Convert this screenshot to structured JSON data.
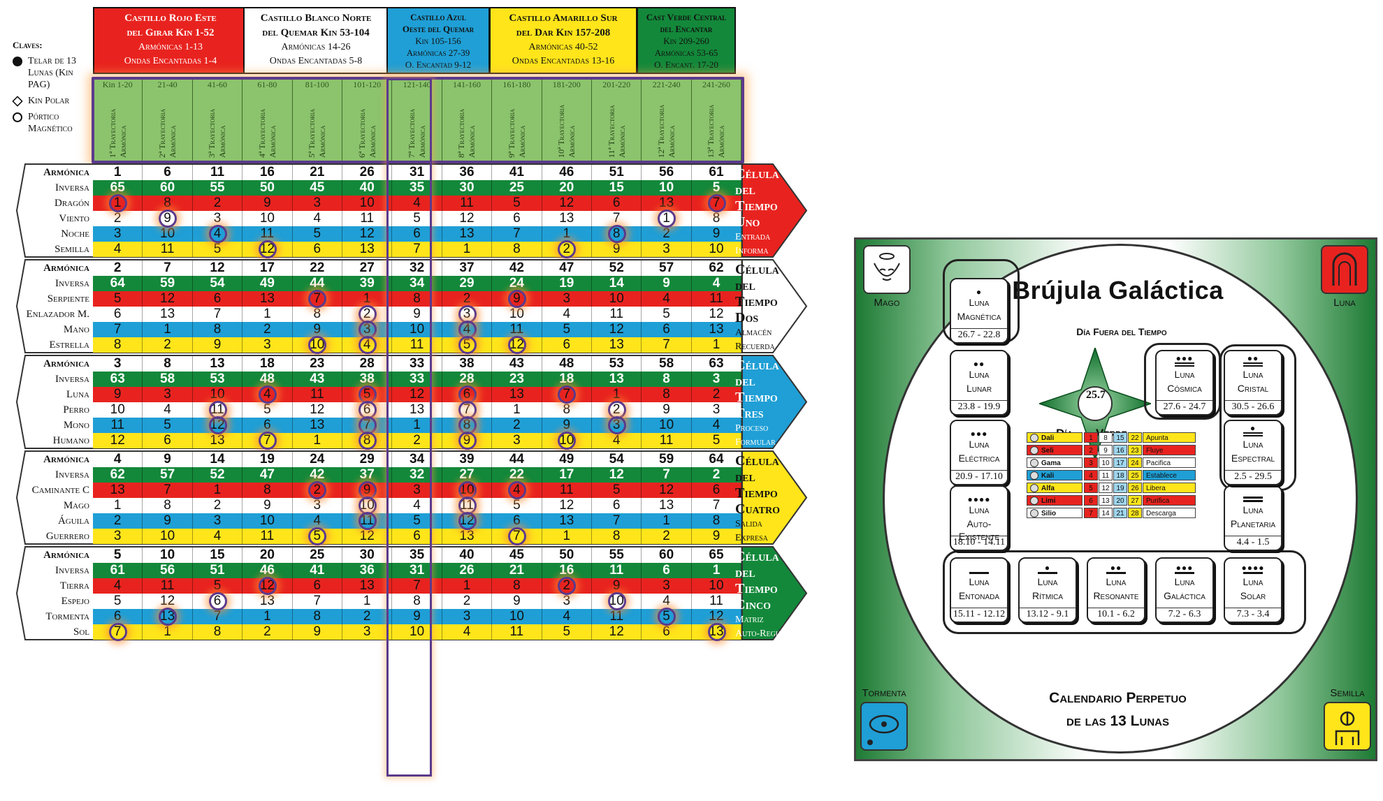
{
  "legend": {
    "title": "Claves:",
    "items": [
      {
        "symbol": "dot",
        "label": "Telar de 13 Lunas (Kin PAG)"
      },
      {
        "symbol": "diamond",
        "label": "Kin Polar"
      },
      {
        "symbol": "ring",
        "label": "Pórtico Magnético"
      }
    ]
  },
  "castles": [
    {
      "color": "#e8231f",
      "text": "#ffffff",
      "line1": "Castillo Rojo Este",
      "line2": "del Girar Kin 1-52",
      "line3": "Armónicas 1-13",
      "line4": "Ondas Encantadas 1-4"
    },
    {
      "color": "#ffffff",
      "text": "#111111",
      "line1": "Castillo Blanco Norte",
      "line2": "del Quemar Kin 53-104",
      "line3": "Armónicas 14-26",
      "line4": "Ondas Encantadas 5-8"
    },
    {
      "color": "#1f9fd6",
      "text": "#111111",
      "line1": "Castillo Azul",
      "line2": "Oeste del Quemar",
      "line3": "Kin 105-156",
      "line4": "Armónicas 27-39",
      "line5": "O. Encantad 9-12"
    },
    {
      "color": "#ffe51a",
      "text": "#111111",
      "line1": "Castillo Amarillo Sur",
      "line2": "del Dar Kin 157-208",
      "line3": "Armónicas 40-52",
      "line4": "Ondas Encantadas 13-16"
    },
    {
      "color": "#13883a",
      "text": "#111111",
      "line1": "Cast Verde Central",
      "line2": "del Encantar",
      "line3": "Kin 209-260",
      "line4": "Armónicas 53-65",
      "line5": "O. Encant. 17-20"
    }
  ],
  "trajectories": [
    {
      "range": "Kin 1-20",
      "label": "1ª Trayectoria Armónica"
    },
    {
      "range": "21-40",
      "label": "2ª Trayectoria Armónica"
    },
    {
      "range": "41-60",
      "label": "3ª Trayectoria Armónica"
    },
    {
      "range": "61-80",
      "label": "4ª Trayectoria Armónica"
    },
    {
      "range": "81-100",
      "label": "5ª Trayectoria Armónica"
    },
    {
      "range": "101-120",
      "label": "6ª Trayectoria Armónica"
    },
    {
      "range": "121-140",
      "label": "7ª Trayectoria Armónica"
    },
    {
      "range": "141-160",
      "label": "8ª Trayectoria Armónica"
    },
    {
      "range": "161-180",
      "label": "9ª Trayectoria Armónica"
    },
    {
      "range": "181-200",
      "label": "10ª Trayectoria Armónica"
    },
    {
      "range": "201-220",
      "label": "11ª Trayectoria Armónica"
    },
    {
      "range": "221-240",
      "label": "12ª Trayectoria Armónica"
    },
    {
      "range": "241-260",
      "label": "13ª Trayectoria Armónica"
    }
  ],
  "rowColors": {
    "harmonic": "#ffffff",
    "inverse": "#13883a",
    "red": "#e8231f",
    "white": "#ffffff",
    "blue": "#1f9fd6",
    "yellow": "#ffe51a"
  },
  "cells": [
    {
      "title": [
        "Célula",
        "del",
        "Tiempo",
        "Uno"
      ],
      "sub": [
        "Entrada",
        "Informa"
      ],
      "color": "#e8231f",
      "rows": [
        {
          "name": "Armónica",
          "kind": "harmonic",
          "vals": [
            "1",
            "6",
            "11",
            "16",
            "21",
            "26",
            "31",
            "36",
            "41",
            "46",
            "51",
            "56",
            "61"
          ]
        },
        {
          "name": "Inversa",
          "kind": "inverse",
          "vals": [
            "65",
            "60",
            "55",
            "50",
            "45",
            "40",
            "35",
            "30",
            "25",
            "20",
            "15",
            "10",
            "5"
          ]
        },
        {
          "name": "Dragón",
          "kind": "red",
          "vals": [
            "1",
            "8",
            "2",
            "9",
            "3",
            "10",
            "4",
            "11",
            "5",
            "12",
            "6",
            "13",
            "7"
          ]
        },
        {
          "name": "Viento",
          "kind": "white",
          "vals": [
            "2",
            "9",
            "3",
            "10",
            "4",
            "11",
            "5",
            "12",
            "6",
            "13",
            "7",
            "1",
            "8"
          ]
        },
        {
          "name": "Noche",
          "kind": "blue",
          "vals": [
            "3",
            "10",
            "4",
            "11",
            "5",
            "12",
            "6",
            "13",
            "7",
            "1",
            "8",
            "2",
            "9"
          ]
        },
        {
          "name": "Semilla",
          "kind": "yellow",
          "vals": [
            "4",
            "11",
            "5",
            "12",
            "6",
            "13",
            "7",
            "1",
            "8",
            "2",
            "9",
            "3",
            "10"
          ]
        }
      ],
      "marks": [
        [
          2,
          0
        ],
        [
          2,
          12
        ],
        [
          3,
          1
        ],
        [
          3,
          11
        ],
        [
          4,
          2
        ],
        [
          4,
          10
        ],
        [
          5,
          3
        ],
        [
          5,
          9
        ]
      ]
    },
    {
      "title": [
        "Célula",
        "del",
        "Tiempo",
        "Dos"
      ],
      "sub": [
        "Almacén",
        "Recuerda"
      ],
      "color": "#ffffff",
      "rows": [
        {
          "name": "Armónica",
          "kind": "harmonic",
          "vals": [
            "2",
            "7",
            "12",
            "17",
            "22",
            "27",
            "32",
            "37",
            "42",
            "47",
            "52",
            "57",
            "62"
          ]
        },
        {
          "name": "Inversa",
          "kind": "inverse",
          "vals": [
            "64",
            "59",
            "54",
            "49",
            "44",
            "39",
            "34",
            "29",
            "24",
            "19",
            "14",
            "9",
            "4"
          ]
        },
        {
          "name": "Serpiente",
          "kind": "red",
          "vals": [
            "5",
            "12",
            "6",
            "13",
            "7",
            "1",
            "8",
            "2",
            "9",
            "3",
            "10",
            "4",
            "11"
          ]
        },
        {
          "name": "Enlazador M.",
          "kind": "white",
          "vals": [
            "6",
            "13",
            "7",
            "1",
            "8",
            "2",
            "9",
            "3",
            "10",
            "4",
            "11",
            "5",
            "12"
          ]
        },
        {
          "name": "Mano",
          "kind": "blue",
          "vals": [
            "7",
            "1",
            "8",
            "2",
            "9",
            "3",
            "10",
            "4",
            "11",
            "5",
            "12",
            "6",
            "13"
          ]
        },
        {
          "name": "Estrella",
          "kind": "yellow",
          "vals": [
            "8",
            "2",
            "9",
            "3",
            "10",
            "4",
            "11",
            "5",
            "12",
            "6",
            "13",
            "7",
            "1"
          ]
        }
      ],
      "marks": [
        [
          2,
          4
        ],
        [
          2,
          8
        ],
        [
          3,
          5
        ],
        [
          3,
          7
        ],
        [
          4,
          5
        ],
        [
          4,
          7
        ],
        [
          5,
          4
        ],
        [
          5,
          5
        ],
        [
          5,
          7
        ],
        [
          5,
          8
        ]
      ]
    },
    {
      "title": [
        "Célula",
        "del",
        "Tiempo",
        "Tres"
      ],
      "sub": [
        "Proceso",
        "Formular"
      ],
      "color": "#1f9fd6",
      "rows": [
        {
          "name": "Armónica",
          "kind": "harmonic",
          "vals": [
            "3",
            "8",
            "13",
            "18",
            "23",
            "28",
            "33",
            "38",
            "43",
            "48",
            "53",
            "58",
            "63"
          ]
        },
        {
          "name": "Inversa",
          "kind": "inverse",
          "vals": [
            "63",
            "58",
            "53",
            "48",
            "43",
            "38",
            "33",
            "28",
            "23",
            "18",
            "13",
            "8",
            "3"
          ]
        },
        {
          "name": "Luna",
          "kind": "red",
          "vals": [
            "9",
            "3",
            "10",
            "4",
            "11",
            "5",
            "12",
            "6",
            "13",
            "7",
            "1",
            "8",
            "2"
          ]
        },
        {
          "name": "Perro",
          "kind": "white",
          "vals": [
            "10",
            "4",
            "11",
            "5",
            "12",
            "6",
            "13",
            "7",
            "1",
            "8",
            "2",
            "9",
            "3"
          ]
        },
        {
          "name": "Mono",
          "kind": "blue",
          "vals": [
            "11",
            "5",
            "12",
            "6",
            "13",
            "7",
            "1",
            "8",
            "2",
            "9",
            "3",
            "10",
            "4"
          ]
        },
        {
          "name": "Humano",
          "kind": "yellow",
          "vals": [
            "12",
            "6",
            "13",
            "7",
            "1",
            "8",
            "2",
            "9",
            "3",
            "10",
            "4",
            "11",
            "5"
          ]
        }
      ],
      "marks": [
        [
          2,
          3
        ],
        [
          2,
          5
        ],
        [
          2,
          7
        ],
        [
          2,
          9
        ],
        [
          3,
          2
        ],
        [
          3,
          5
        ],
        [
          3,
          7
        ],
        [
          3,
          10
        ],
        [
          4,
          2
        ],
        [
          4,
          5
        ],
        [
          4,
          7
        ],
        [
          4,
          10
        ],
        [
          5,
          3
        ],
        [
          5,
          5
        ],
        [
          5,
          7
        ],
        [
          5,
          9
        ]
      ]
    },
    {
      "title": [
        "Célula",
        "del",
        "Tiempo",
        "Cuatro"
      ],
      "sub": [
        "Salida",
        "Expresa"
      ],
      "color": "#ffe51a",
      "rows": [
        {
          "name": "Armónica",
          "kind": "harmonic",
          "vals": [
            "4",
            "9",
            "14",
            "19",
            "24",
            "29",
            "34",
            "39",
            "44",
            "49",
            "54",
            "59",
            "64"
          ]
        },
        {
          "name": "Inversa",
          "kind": "inverse",
          "vals": [
            "62",
            "57",
            "52",
            "47",
            "42",
            "37",
            "32",
            "27",
            "22",
            "17",
            "12",
            "7",
            "2"
          ]
        },
        {
          "name": "Caminante C",
          "kind": "red",
          "vals": [
            "13",
            "7",
            "1",
            "8",
            "2",
            "9",
            "3",
            "10",
            "4",
            "11",
            "5",
            "12",
            "6"
          ]
        },
        {
          "name": "Mago",
          "kind": "white",
          "vals": [
            "1",
            "8",
            "2",
            "9",
            "3",
            "10",
            "4",
            "11",
            "5",
            "12",
            "6",
            "13",
            "7"
          ]
        },
        {
          "name": "Águila",
          "kind": "blue",
          "vals": [
            "2",
            "9",
            "3",
            "10",
            "4",
            "11",
            "5",
            "12",
            "6",
            "13",
            "7",
            "1",
            "8"
          ]
        },
        {
          "name": "Guerrero",
          "kind": "yellow",
          "vals": [
            "3",
            "10",
            "4",
            "11",
            "5",
            "12",
            "6",
            "13",
            "7",
            "1",
            "8",
            "2",
            "9"
          ]
        }
      ],
      "marks": [
        [
          2,
          4
        ],
        [
          2,
          5
        ],
        [
          2,
          7
        ],
        [
          2,
          8
        ],
        [
          3,
          5
        ],
        [
          3,
          7
        ],
        [
          4,
          5
        ],
        [
          4,
          7
        ],
        [
          5,
          4
        ],
        [
          5,
          8
        ]
      ]
    },
    {
      "title": [
        "Célula",
        "del",
        "Tiempo",
        "Cinco"
      ],
      "sub": [
        "Matriz",
        "Auto-Regular"
      ],
      "color": "#13883a",
      "rows": [
        {
          "name": "Armónica",
          "kind": "harmonic",
          "vals": [
            "5",
            "10",
            "15",
            "20",
            "25",
            "30",
            "35",
            "40",
            "45",
            "50",
            "55",
            "60",
            "65"
          ]
        },
        {
          "name": "Inversa",
          "kind": "inverse",
          "vals": [
            "61",
            "56",
            "51",
            "46",
            "41",
            "36",
            "31",
            "26",
            "21",
            "16",
            "11",
            "6",
            "1"
          ]
        },
        {
          "name": "Tierra",
          "kind": "red",
          "vals": [
            "4",
            "11",
            "5",
            "12",
            "6",
            "13",
            "7",
            "1",
            "8",
            "2",
            "9",
            "3",
            "10"
          ]
        },
        {
          "name": "Espejo",
          "kind": "white",
          "vals": [
            "5",
            "12",
            "6",
            "13",
            "7",
            "1",
            "8",
            "2",
            "9",
            "3",
            "10",
            "4",
            "11"
          ]
        },
        {
          "name": "Tormenta",
          "kind": "blue",
          "vals": [
            "6",
            "13",
            "7",
            "1",
            "8",
            "2",
            "9",
            "3",
            "10",
            "4",
            "11",
            "5",
            "12"
          ]
        },
        {
          "name": "Sol",
          "kind": "yellow",
          "vals": [
            "7",
            "1",
            "8",
            "2",
            "9",
            "3",
            "10",
            "4",
            "11",
            "5",
            "12",
            "6",
            "13"
          ]
        }
      ],
      "marks": [
        [
          2,
          3
        ],
        [
          2,
          9
        ],
        [
          3,
          2
        ],
        [
          3,
          10
        ],
        [
          4,
          1
        ],
        [
          4,
          11
        ],
        [
          5,
          0
        ],
        [
          5,
          12
        ]
      ]
    }
  ],
  "compass": {
    "title": "Brújula Galáctica",
    "corners": {
      "tl": "Mago",
      "tr": "Luna",
      "bl": "Tormenta",
      "br": "Semilla"
    },
    "dayOut": "Día Fuera del Tiempo",
    "dayOutDate": "25.7",
    "dia": "Día",
    "verde": "Verde",
    "footer1": "Calendario Perpetuo",
    "footer2": "de las 13 Lunas",
    "moons": [
      {
        "name1": "Luna",
        "name2": "Magnética",
        "dots": 1,
        "bars": 0,
        "dates": "26.7 - 22.8"
      },
      {
        "name1": "Luna",
        "name2": "Lunar",
        "dots": 2,
        "bars": 0,
        "dates": "23.8 - 19.9"
      },
      {
        "name1": "Luna",
        "name2": "Eléctrica",
        "dots": 3,
        "bars": 0,
        "dates": "20.9 - 17.10"
      },
      {
        "name1": "Luna",
        "name2": "Auto-Existente",
        "dots": 4,
        "bars": 0,
        "dates": "18.10 - 14.11"
      },
      {
        "name1": "Luna",
        "name2": "Entonada",
        "dots": 0,
        "bars": 1,
        "dates": "15.11 - 12.12"
      },
      {
        "name1": "Luna",
        "name2": "Rítmica",
        "dots": 1,
        "bars": 1,
        "dates": "13.12 - 9.1"
      },
      {
        "name1": "Luna",
        "name2": "Resonante",
        "dots": 2,
        "bars": 1,
        "dates": "10.1 - 6.2"
      },
      {
        "name1": "Luna",
        "name2": "Galáctica",
        "dots": 3,
        "bars": 1,
        "dates": "7.2 - 6.3"
      },
      {
        "name1": "Luna",
        "name2": "Solar",
        "dots": 4,
        "bars": 1,
        "dates": "7.3 - 3.4"
      },
      {
        "name1": "Luna",
        "name2": "Planetaria",
        "dots": 0,
        "bars": 2,
        "dates": "4.4 - 1.5"
      },
      {
        "name1": "Luna",
        "name2": "Espectral",
        "dots": 1,
        "bars": 2,
        "dates": "2.5 - 29.5"
      },
      {
        "name1": "Luna",
        "name2": "Cristal",
        "dots": 2,
        "bars": 2,
        "dates": "30.5 - 26.6"
      },
      {
        "name1": "Luna",
        "name2": "Cósmica",
        "dots": 3,
        "bars": 2,
        "dates": "27.6 - 24.7"
      }
    ],
    "plasmas": [
      {
        "name": "Dali",
        "color": "#ffe51a",
        "nums": [
          "1",
          "8",
          "15",
          "22"
        ],
        "action": "Apunta"
      },
      {
        "name": "Seli",
        "color": "#e8231f",
        "nums": [
          "2",
          "9",
          "16",
          "23"
        ],
        "action": "Fluye"
      },
      {
        "name": "Gama",
        "color": "#ffffff",
        "nums": [
          "3",
          "10",
          "17",
          "24"
        ],
        "action": "Pacifica"
      },
      {
        "name": "Kali",
        "color": "#1f9fd6",
        "nums": [
          "4",
          "11",
          "18",
          "25"
        ],
        "action": "Establece"
      },
      {
        "name": "Alfa",
        "color": "#ffe51a",
        "nums": [
          "5",
          "12",
          "19",
          "26"
        ],
        "action": "Libera"
      },
      {
        "name": "Limi",
        "color": "#e8231f",
        "nums": [
          "6",
          "13",
          "20",
          "27"
        ],
        "action": "Purifica"
      },
      {
        "name": "Silio",
        "color": "#ffffff",
        "nums": [
          "7",
          "14",
          "21",
          "28"
        ],
        "action": "Descarga"
      }
    ]
  }
}
